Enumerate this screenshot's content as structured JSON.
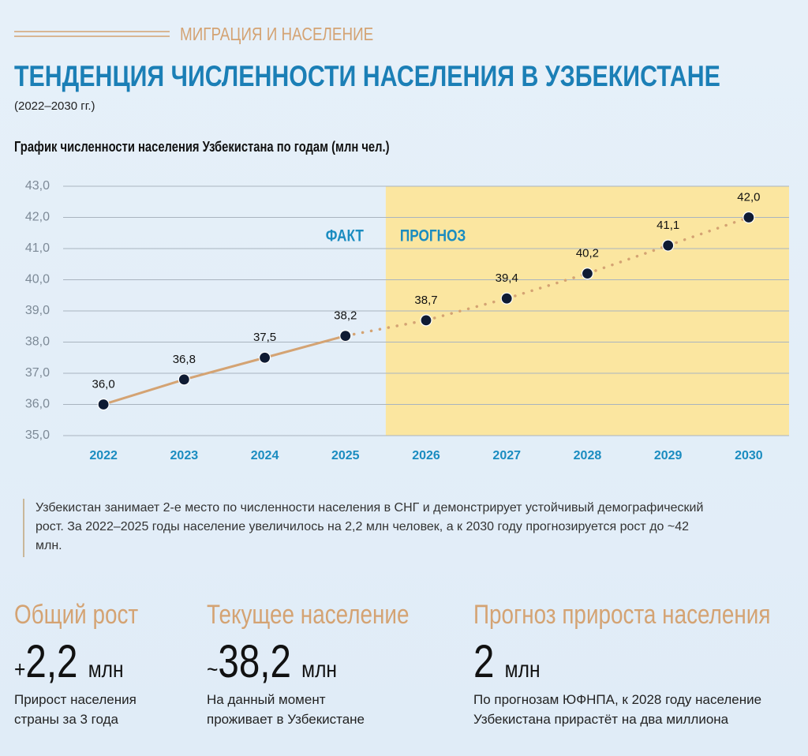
{
  "header": {
    "section": "МИГРАЦИЯ И НАСЕЛЕНИЕ",
    "title": "ТЕНДЕНЦИЯ ЧИСЛЕННОСТИ НАСЕЛЕНИЯ В УЗБЕКИСТАНЕ",
    "period": "(2022–2030 гг.)"
  },
  "chart_data": {
    "type": "line",
    "title": "График численности населения Узбекистана по годам (млн чел.)",
    "categories": [
      "2022",
      "2023",
      "2024",
      "2025",
      "2026",
      "2027",
      "2028",
      "2029",
      "2030"
    ],
    "values": [
      36.0,
      36.8,
      37.5,
      38.2,
      38.7,
      39.4,
      40.2,
      41.1,
      42.0
    ],
    "value_labels": [
      "36,0",
      "36,8",
      "37,5",
      "38,2",
      "38,7",
      "39,4",
      "40,2",
      "41,1",
      "42,0"
    ],
    "ylim": [
      35,
      43
    ],
    "yticks": [
      {
        "value": 35,
        "label": "35,0"
      },
      {
        "value": 36,
        "label": "36,0"
      },
      {
        "value": 37,
        "label": "37,0"
      },
      {
        "value": 38,
        "label": "38,0"
      },
      {
        "value": 39,
        "label": "39,0"
      },
      {
        "value": 40,
        "label": "40,0"
      },
      {
        "value": 41,
        "label": "41,0"
      },
      {
        "value": 42,
        "label": "42,0"
      },
      {
        "value": 43,
        "label": "43,0"
      }
    ],
    "grid": true,
    "color": "#d4a373",
    "marker_color": "#0f1b33",
    "forecast_start": "2026",
    "forecast_color": "#fbe6a0",
    "annotations": [
      "ФАКТ",
      "ПРОГНОЗ"
    ]
  },
  "note": "Узбекистан занимает 2-е место по численности населения в СНГ и демонстрирует устойчивый демографический рост. За 2022–2025 годы население увеличилось на 2,2 млн человек, а к 2030 году прогнозируется рост до ~42 млн.",
  "stats": [
    {
      "heading": "Общий рост",
      "prefix": "+",
      "value": "2,2",
      "unit": "млн",
      "caption": "Прирост населения страны за 3 года"
    },
    {
      "heading": "Текущее население",
      "prefix": "~",
      "value": "38,2",
      "unit": "млн",
      "caption": "На данный момент проживает в Узбекистане"
    },
    {
      "heading": "Прогноз прироста населения",
      "value": "2",
      "unit": "млн",
      "caption": "По прогнозам ЮФНПА, к 2028 году население Узбекистана прирастёт на два миллиона"
    }
  ]
}
